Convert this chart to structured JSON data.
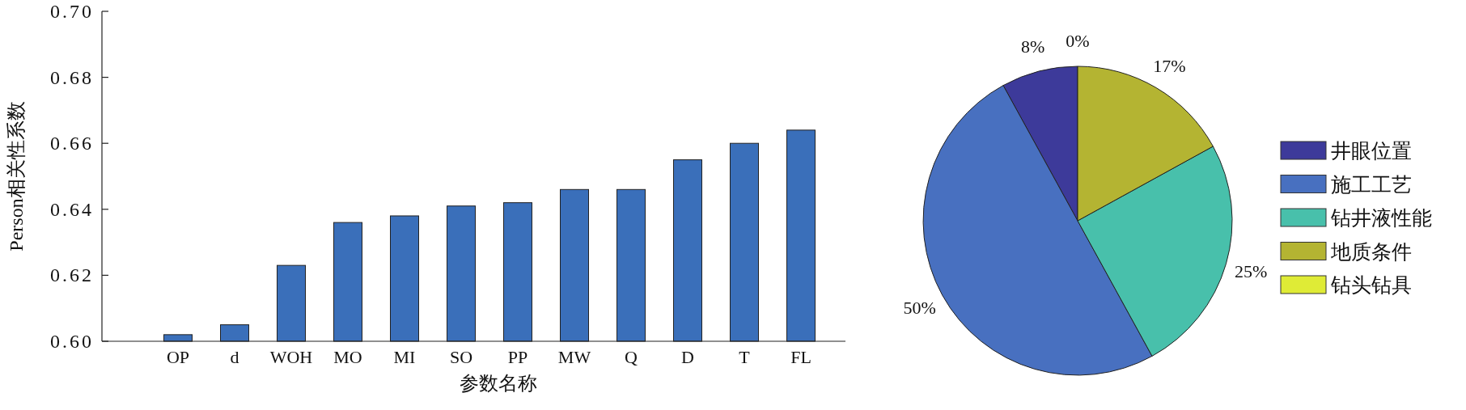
{
  "chart_data": [
    {
      "type": "bar",
      "xlabel": "参数名称",
      "ylabel": "Person相关性系数",
      "categories": [
        "OP",
        "d",
        "WOH",
        "MO",
        "MI",
        "SO",
        "PP",
        "MW",
        "Q",
        "D",
        "T",
        "FL"
      ],
      "values": [
        0.602,
        0.605,
        0.623,
        0.636,
        0.638,
        0.641,
        0.642,
        0.646,
        0.646,
        0.655,
        0.66,
        0.664
      ],
      "color": "#3a6fba",
      "ylim": [
        0.6,
        0.7
      ],
      "yticks": [
        {
          "value": 0.6,
          "label": "0.60"
        },
        {
          "value": 0.62,
          "label": "0.62"
        },
        {
          "value": 0.64,
          "label": "0.64"
        },
        {
          "value": 0.66,
          "label": "0.66"
        },
        {
          "value": 0.68,
          "label": "0.68"
        },
        {
          "value": 0.7,
          "label": "0.70"
        }
      ]
    },
    {
      "type": "pie",
      "categories": [
        "井眼位置",
        "施工工艺",
        "钻井液性能",
        "地质条件",
        "钻头钻具"
      ],
      "values": [
        8,
        50,
        25,
        17,
        0
      ],
      "value_labels": [
        "8%",
        "50%",
        "25%",
        "17%",
        "0%"
      ],
      "colors": [
        "#3d3a9a",
        "#4870c0",
        "#48c0ab",
        "#b4b432",
        "#dfeb36"
      ],
      "legend": "right"
    }
  ]
}
